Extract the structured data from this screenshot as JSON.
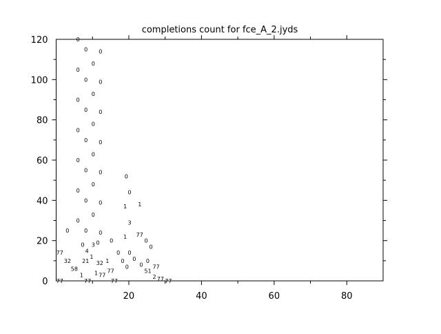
{
  "chart_data": {
    "type": "scatter",
    "title": "completions count for fce_A_2.jyds",
    "xlabel": "",
    "ylabel": "",
    "xlim": [
      0,
      90
    ],
    "ylim": [
      0,
      120
    ],
    "x_ticks": [
      20,
      40,
      60,
      80
    ],
    "y_ticks": [
      0,
      20,
      40,
      60,
      80,
      100,
      120
    ],
    "grid": false,
    "marker": "text labels",
    "points": [
      {
        "x": 6,
        "y": 120,
        "label": "0"
      },
      {
        "x": 8.2,
        "y": 115,
        "label": "0"
      },
      {
        "x": 12.2,
        "y": 114,
        "label": "0"
      },
      {
        "x": 10.2,
        "y": 108,
        "label": "0"
      },
      {
        "x": 6,
        "y": 105,
        "label": "0"
      },
      {
        "x": 8.2,
        "y": 100,
        "label": "0"
      },
      {
        "x": 12.2,
        "y": 99,
        "label": "0"
      },
      {
        "x": 10.2,
        "y": 93,
        "label": "0"
      },
      {
        "x": 6,
        "y": 90,
        "label": "0"
      },
      {
        "x": 8.2,
        "y": 85,
        "label": "0"
      },
      {
        "x": 12.2,
        "y": 84,
        "label": "0"
      },
      {
        "x": 10.2,
        "y": 78,
        "label": "0"
      },
      {
        "x": 6,
        "y": 75,
        "label": "0"
      },
      {
        "x": 8.2,
        "y": 70,
        "label": "0"
      },
      {
        "x": 12.2,
        "y": 69,
        "label": "0"
      },
      {
        "x": 10.2,
        "y": 63,
        "label": "0"
      },
      {
        "x": 6,
        "y": 60,
        "label": "0"
      },
      {
        "x": 8.2,
        "y": 55,
        "label": "0"
      },
      {
        "x": 12.2,
        "y": 54,
        "label": "0"
      },
      {
        "x": 19.3,
        "y": 52,
        "label": "0"
      },
      {
        "x": 10.2,
        "y": 48,
        "label": "0"
      },
      {
        "x": 6,
        "y": 45,
        "label": "0"
      },
      {
        "x": 20.2,
        "y": 44,
        "label": "0"
      },
      {
        "x": 8.2,
        "y": 40,
        "label": "0"
      },
      {
        "x": 12.2,
        "y": 39,
        "label": "0"
      },
      {
        "x": 19,
        "y": 37,
        "label": "1"
      },
      {
        "x": 23,
        "y": 38,
        "label": "1"
      },
      {
        "x": 10.2,
        "y": 33,
        "label": "0"
      },
      {
        "x": 20.2,
        "y": 29,
        "label": "3"
      },
      {
        "x": 6,
        "y": 30,
        "label": "0"
      },
      {
        "x": 3.1,
        "y": 25,
        "label": "0"
      },
      {
        "x": 8.2,
        "y": 25,
        "label": "0"
      },
      {
        "x": 12.2,
        "y": 24,
        "label": "0"
      },
      {
        "x": 19,
        "y": 22,
        "label": "1"
      },
      {
        "x": 23,
        "y": 23,
        "label": "77"
      },
      {
        "x": 7.3,
        "y": 18,
        "label": "0"
      },
      {
        "x": 10.2,
        "y": 18,
        "label": "3"
      },
      {
        "x": 11.3,
        "y": 19,
        "label": "0"
      },
      {
        "x": 15.2,
        "y": 20,
        "label": "0"
      },
      {
        "x": 22.3,
        "y": 20,
        "label": "0"
      },
      {
        "x": 24.2,
        "y": 17,
        "label": "0"
      },
      {
        "x": 1,
        "y": 14,
        "label": "77"
      },
      {
        "x": 6.2,
        "y": 15,
        "label": "4"
      },
      {
        "x": 17.1,
        "y": 14,
        "label": "0"
      },
      {
        "x": 20.2,
        "y": 14,
        "label": "0"
      },
      {
        "x": 9,
        "y": 12,
        "label": "1"
      },
      {
        "x": 21.3,
        "y": 11,
        "label": "0"
      },
      {
        "x": 3.1,
        "y": 10,
        "label": "32"
      },
      {
        "x": 8.1,
        "y": 10,
        "label": "21"
      },
      {
        "x": 12,
        "y": 9,
        "label": "32"
      },
      {
        "x": 14.1,
        "y": 10,
        "label": "1"
      },
      {
        "x": 18.3,
        "y": 10,
        "label": "0"
      },
      {
        "x": 25.2,
        "y": 10,
        "label": "0"
      },
      {
        "x": 23.4,
        "y": 8,
        "label": "0"
      },
      {
        "x": 5,
        "y": 6,
        "label": "58"
      },
      {
        "x": 19.3,
        "y": 7,
        "label": "0"
      },
      {
        "x": 22,
        "y": 5,
        "label": "51"
      },
      {
        "x": 26,
        "y": 7,
        "label": "77"
      },
      {
        "x": 15,
        "y": 5,
        "label": "77"
      },
      {
        "x": 11,
        "y": 4,
        "label": "1"
      },
      {
        "x": 10,
        "y": 3,
        "label": "77"
      },
      {
        "x": 7,
        "y": 3,
        "label": "1"
      },
      {
        "x": 24,
        "y": 2,
        "label": "2"
      },
      {
        "x": 27,
        "y": 1,
        "label": "77"
      },
      {
        "x": 29,
        "y": 0,
        "label": "77"
      },
      {
        "x": 1,
        "y": 0,
        "label": "77"
      },
      {
        "x": 6,
        "y": 0,
        "label": "77"
      },
      {
        "x": 16,
        "y": 0,
        "label": "77"
      }
    ]
  }
}
